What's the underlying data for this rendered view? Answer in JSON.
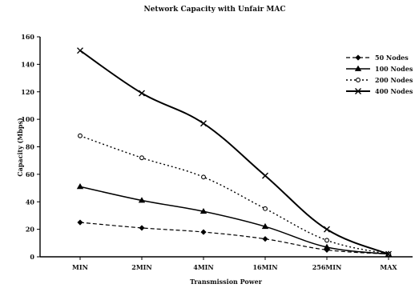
{
  "chart_data": {
    "type": "line",
    "title": "Network Capacity with Unfair MAC",
    "xlabel": "Transmission Power",
    "ylabel": "Capacity (Mbps)",
    "categories": [
      "MIN",
      "2MIN",
      "4MIN",
      "16MIN",
      "256MIN",
      "MAX"
    ],
    "ylim": [
      0,
      160
    ],
    "yticks": [
      "0",
      "20",
      "40",
      "60",
      "80",
      "100",
      "120",
      "140",
      "160"
    ],
    "grid": false,
    "legend_position": "top-right",
    "series": [
      {
        "name": "50 Nodes",
        "marker": "diamond",
        "dash": "dashed",
        "values": [
          25,
          21,
          18,
          13,
          5,
          2
        ]
      },
      {
        "name": "100 Nodes",
        "marker": "triangle",
        "dash": "solid",
        "values": [
          51,
          41,
          33,
          22,
          7,
          2
        ]
      },
      {
        "name": "200 Nodes",
        "marker": "circle",
        "dash": "dotted",
        "values": [
          88,
          72,
          58,
          35,
          12,
          2
        ]
      },
      {
        "name": "400 Nodes",
        "marker": "cross",
        "dash": "solid",
        "values": [
          150,
          119,
          97,
          59,
          20,
          2
        ]
      }
    ]
  }
}
